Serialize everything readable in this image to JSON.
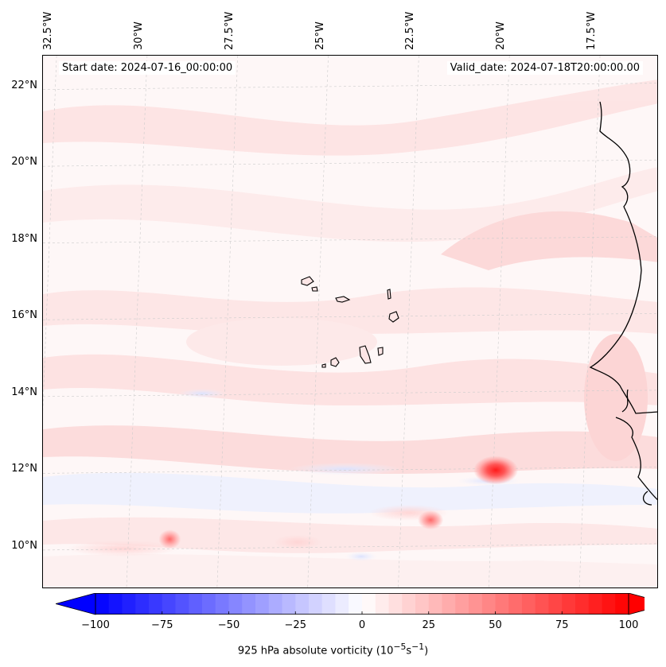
{
  "map": {
    "title_start": "Start date: 2024-07-16_00:00:00",
    "title_valid": "Valid_date: 2024-07-18T20:00:00.00",
    "lon_labels": [
      "32.5°W",
      "30°W",
      "27.5°W",
      "25°W",
      "22.5°W",
      "20°W",
      "17.5°W"
    ],
    "lat_labels": [
      "22°N",
      "20°N",
      "18°N",
      "16°N",
      "14°N",
      "12°N",
      "10°N"
    ],
    "region": {
      "lon_min": -32.7,
      "lon_max": -15.7,
      "lat_min": 8.9,
      "lat_max": 22.8
    },
    "features": [
      {
        "name": "Cape Verde Islands",
        "type": "island-group"
      },
      {
        "name": "West African coast",
        "type": "coastline"
      },
      {
        "name": "Vorticity maximum",
        "type": "hotspot",
        "lon": -20.2,
        "lat": 12.0
      },
      {
        "name": "Vorticity maximum",
        "type": "hotspot",
        "lon": -22.0,
        "lat": 10.7
      },
      {
        "name": "Vorticity maximum",
        "type": "hotspot",
        "lon": -29.2,
        "lat": 10.2
      }
    ]
  },
  "colorbar": {
    "label": "925 hPa absolute vorticity (10",
    "label_exp": "−5",
    "label_unit": "s",
    "label_exp2": "−1",
    "label_close": ")",
    "ticks": [
      "−100",
      "−75",
      "−50",
      "−25",
      "0",
      "25",
      "50",
      "75",
      "100"
    ],
    "min": -100,
    "max": 100,
    "colors": {
      "neg": "#0000ff",
      "zero": "#ffffff",
      "pos": "#ff0000"
    }
  }
}
